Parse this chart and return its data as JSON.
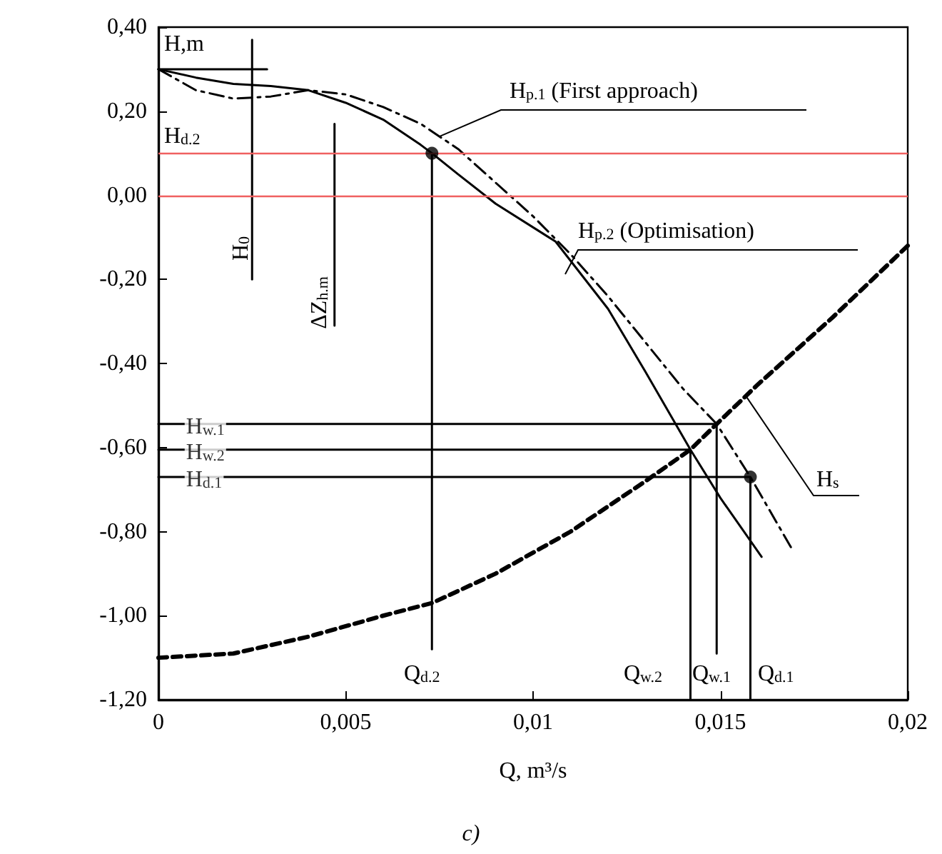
{
  "chart_data": {
    "type": "line",
    "xlabel": "Q, m³/s",
    "ylabel": "H,m",
    "xlim": [
      0,
      0.02
    ],
    "ylim": [
      -1.2,
      0.4
    ],
    "xticks": [
      0,
      {
        "value": 0.005,
        "label": "0,005"
      },
      {
        "value": 0.01,
        "label": "0,01"
      },
      {
        "value": 0.015,
        "label": "0,015"
      },
      {
        "value": 0.02,
        "label": "0,02"
      }
    ],
    "yticks": [
      {
        "value": -1.2,
        "label": "-1,20"
      },
      {
        "value": -1,
        "label": "-1,00"
      },
      {
        "value": -0.8,
        "label": "-0,80"
      },
      {
        "value": -0.6,
        "label": "-0,60"
      },
      {
        "value": -0.4,
        "label": "-0,40"
      },
      {
        "value": -0.2,
        "label": "-0,20"
      },
      {
        "value": 0,
        "label": "0,00"
      },
      {
        "value": 0.2,
        "label": "0,20"
      },
      {
        "value": 0.4,
        "label": "0,40"
      }
    ],
    "grid": false,
    "series": [
      {
        "color": "#000000",
        "line_style": "solid",
        "x": [
          0,
          0.001,
          0.002,
          0.003,
          0.004,
          0.005,
          0.006,
          0.007,
          0.0073,
          0.008,
          0.009,
          0.0106,
          0.012,
          0.013,
          0.0142,
          0.015,
          0.0161
        ],
        "values": [
          0.3,
          0.28,
          0.265,
          0.26,
          0.25,
          0.22,
          0.18,
          0.12,
          0.1,
          0.05,
          -0.02,
          -0.11,
          -0.27,
          -0.42,
          -0.605,
          -0.72,
          -0.86
        ]
      },
      {
        "color": "#000000",
        "line_style": "dotted",
        "x": [
          0,
          0.001,
          0.002,
          0.003,
          0.004,
          0.005,
          0.006,
          0.007,
          0.008,
          0.009,
          0.01,
          0.011,
          0.012,
          0.013,
          0.014,
          0.0149,
          0.0158,
          0.0169
        ],
        "values": [
          0.3,
          0.25,
          0.23,
          0.235,
          0.25,
          0.24,
          0.21,
          0.17,
          0.11,
          0.03,
          -0.05,
          -0.14,
          -0.24,
          -0.35,
          -0.46,
          -0.544,
          -0.67,
          -0.84
        ]
      },
      {
        "color": "#000000",
        "line_style": "dashed",
        "x": [
          0,
          0.002,
          0.004,
          0.006,
          0.0073,
          0.009,
          0.011,
          0.013,
          0.0142,
          0.0149,
          0.016,
          0.018,
          0.02
        ],
        "values": [
          -1.1,
          -1.09,
          -1.05,
          -1,
          -0.97,
          -0.9,
          -0.8,
          -0.68,
          -0.605,
          -0.544,
          -0.45,
          -0.29,
          -0.12
        ]
      },
      {
        "color": "#000000",
        "line_style": "solid",
        "x": [
          0.0073,
          0.0073
        ],
        "values": [
          0.1,
          -1.08
        ]
      },
      {
        "color": "#000000",
        "line_style": "solid",
        "x": [
          0,
          0.0149,
          0.0149
        ],
        "values": [
          -0.544,
          -0.544,
          -1.09
        ]
      },
      {
        "color": "#000000",
        "line_style": "solid",
        "x": [
          0,
          0.0142,
          0.0142
        ],
        "values": [
          -0.605,
          -0.605,
          -1.2
        ]
      },
      {
        "color": "#000000",
        "line_style": "solid",
        "x": [
          0,
          0.0158,
          0.0158
        ],
        "values": [
          -0.67,
          -0.67,
          -1.2
        ]
      },
      {
        "color": "#000000",
        "line_style": "solid",
        "x": [
          0,
          0.0029
        ],
        "values": [
          0.3,
          0.3
        ]
      },
      {
        "color": "#000000",
        "line_style": "solid",
        "x": [
          0.0025,
          0.0025
        ],
        "values": [
          0.37,
          -0.2
        ]
      },
      {
        "color": "#000000",
        "line_style": "solid",
        "x": [
          0.0047,
          0.0047
        ],
        "values": [
          0.17,
          -0.31
        ]
      },
      {
        "type": "scatter",
        "marker": "circle",
        "color": "#000000",
        "x": [
          0.0073,
          0.0158
        ],
        "values": [
          0.1,
          -0.67
        ]
      }
    ],
    "ref_lines": [
      {
        "axis": "y",
        "value": 0.1,
        "label": "H$_{d.2}$",
        "color": "#f06060"
      },
      {
        "axis": "y",
        "value": 0,
        "color": "#f06060"
      }
    ],
    "annotations": [
      {
        "text": "H$_{p.1}$ (First approach)",
        "x": 0.0075,
        "y": 0.14
      },
      "H$_{p.2}$ (Optimisation)",
      {
        "text": "H$_{s}$",
        "x": 0.0157,
        "y": -0.48
      },
      "H$_{0}$",
      "ΔZ$_{h.m}$",
      "Q$_{d.2}$",
      "Q$_{w.2}$",
      "Q$_{w.1}$",
      "Q$_{d.1}$",
      "c)",
      {
        "text": "H$_{w.1}$",
        "x": 0.0007,
        "y": -0.544
      },
      {
        "text": "H$_{w.2}$",
        "x": 0.0007,
        "y": -0.605
      },
      {
        "text": "H$_{d.1}$",
        "x": 0.0007,
        "y": -0.67
      }
    ]
  }
}
